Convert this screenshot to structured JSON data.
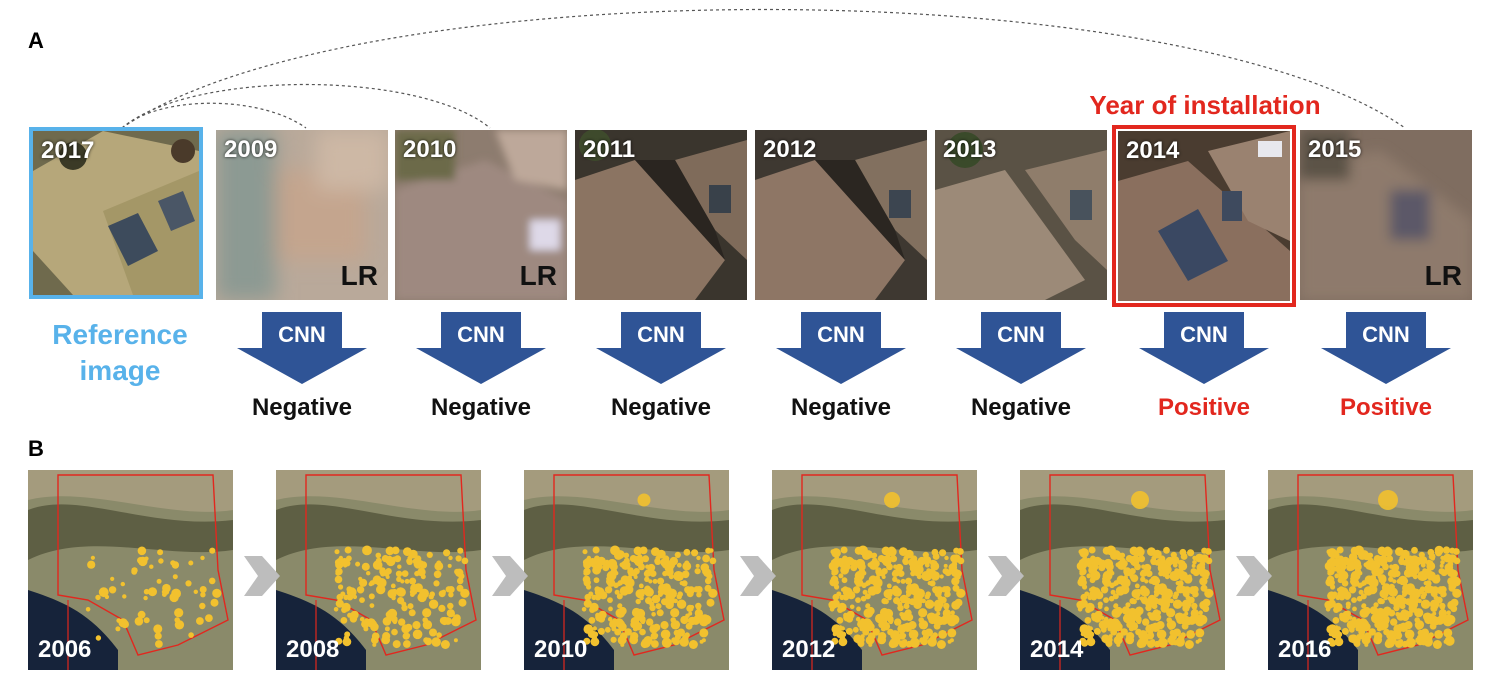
{
  "panel_a": {
    "label": "A",
    "reference": {
      "year": "2017",
      "label_line1": "Reference",
      "label_line2": "image"
    },
    "installation_label": "Year of installation",
    "lr_label": "LR",
    "cnn_label": "CNN",
    "tiles": [
      {
        "year": "2009",
        "lr": true,
        "result": "Negative",
        "positive": false
      },
      {
        "year": "2010",
        "lr": true,
        "result": "Negative",
        "positive": false
      },
      {
        "year": "2011",
        "lr": false,
        "result": "Negative",
        "positive": false
      },
      {
        "year": "2012",
        "lr": false,
        "result": "Negative",
        "positive": false
      },
      {
        "year": "2013",
        "lr": false,
        "result": "Negative",
        "positive": false
      },
      {
        "year": "2014",
        "lr": false,
        "result": "Positive",
        "positive": true
      },
      {
        "year": "2015",
        "lr": true,
        "result": "Positive",
        "positive": true
      }
    ]
  },
  "panel_b": {
    "label": "B",
    "maps": [
      {
        "year": "2006",
        "coverage": 0.15
      },
      {
        "year": "2008",
        "coverage": 0.45
      },
      {
        "year": "2010",
        "coverage": 0.65
      },
      {
        "year": "2012",
        "coverage": 0.8
      },
      {
        "year": "2014",
        "coverage": 0.9
      },
      {
        "year": "2016",
        "coverage": 1.0
      }
    ]
  },
  "colors": {
    "reference_blue": "#58b2ea",
    "installation_red": "#e2271e",
    "cnn_arrow": "#2f5496",
    "pv_yellow": "#f2c12e"
  }
}
